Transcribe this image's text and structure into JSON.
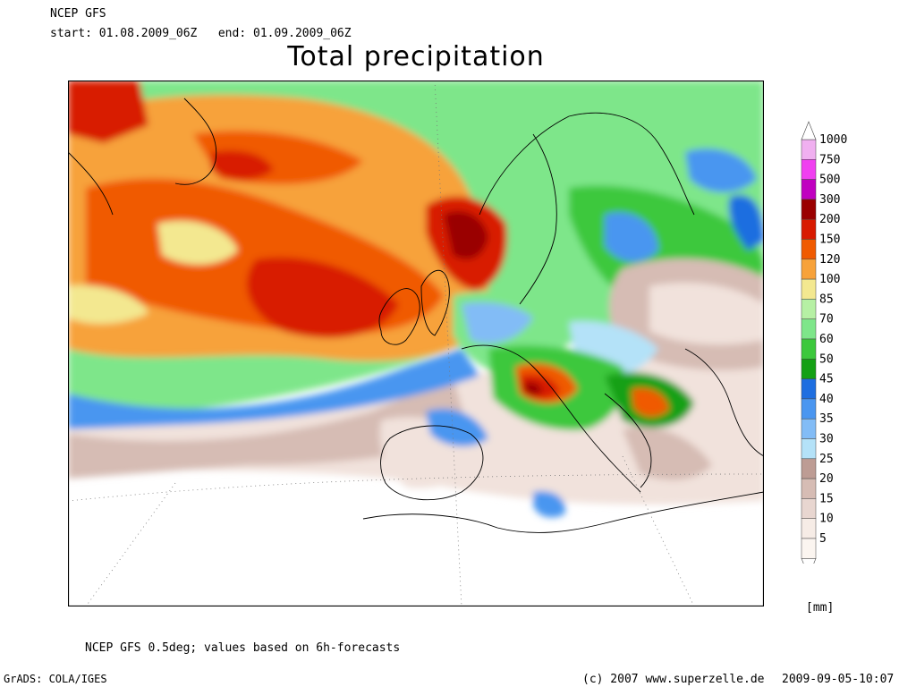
{
  "header": {
    "model": "NCEP GFS",
    "start_label": "start:",
    "start": "01.08.2009_06Z",
    "end_label": "end:",
    "end": "01.09.2009_06Z"
  },
  "title": "Total precipitation",
  "legend": {
    "unit": "[mm]",
    "classes": [
      {
        "value": "1000",
        "color": "#f0b0f0"
      },
      {
        "value": "750",
        "color": "#f040f0"
      },
      {
        "value": "500",
        "color": "#c000c0"
      },
      {
        "value": "300",
        "color": "#9a0000"
      },
      {
        "value": "200",
        "color": "#d81a00"
      },
      {
        "value": "150",
        "color": "#f05a00"
      },
      {
        "value": "120",
        "color": "#f7a23a"
      },
      {
        "value": "100",
        "color": "#f3e890"
      },
      {
        "value": "85",
        "color": "#b6f0a4"
      },
      {
        "value": "70",
        "color": "#7ee68a"
      },
      {
        "value": "60",
        "color": "#3cc83c"
      },
      {
        "value": "50",
        "color": "#14a014"
      },
      {
        "value": "45",
        "color": "#1e6ee0"
      },
      {
        "value": "40",
        "color": "#4a96f0"
      },
      {
        "value": "35",
        "color": "#82bcf6"
      },
      {
        "value": "30",
        "color": "#b4e2f8"
      },
      {
        "value": "25",
        "color": "#bd9c94"
      },
      {
        "value": "20",
        "color": "#d6bcb4"
      },
      {
        "value": "15",
        "color": "#e8d6d0"
      },
      {
        "value": "10",
        "color": "#f6ece6"
      },
      {
        "value": "5",
        "color": "#fbf5f0"
      }
    ]
  },
  "footer": {
    "note": "NCEP GFS 0.5deg; values based on 6h-forecasts",
    "grads": "GrADS: COLA/IGES",
    "copyright": "(c) 2007 www.superzelle.de",
    "timestamp": "2009-09-05-10:07"
  }
}
